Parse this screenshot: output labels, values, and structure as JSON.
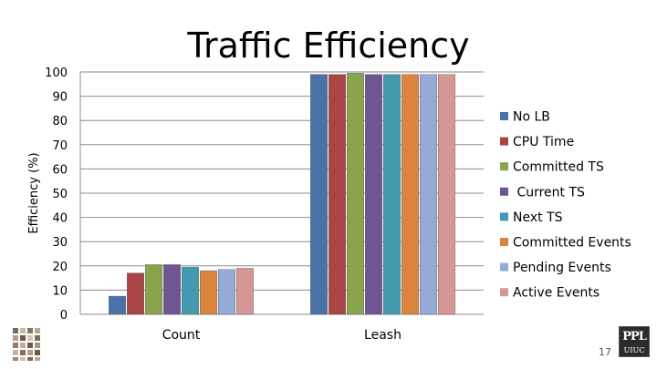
{
  "slide": {
    "number": "17"
  },
  "logos": {
    "right_text_1": "PPL",
    "right_text_2": "UIUC"
  },
  "chart_data": {
    "type": "bar",
    "title": "Traffic Efficiency",
    "ylabel": "Efficiency (%)",
    "xlabel": "",
    "ylim": [
      0,
      100
    ],
    "yticks": [
      0,
      10,
      20,
      30,
      40,
      50,
      60,
      70,
      80,
      90,
      100
    ],
    "grid": true,
    "legend_position": "right",
    "categories": [
      "Count",
      "Leash"
    ],
    "series": [
      {
        "name": "No LB",
        "color": "#4a72a8",
        "values": [
          7.5,
          99
        ]
      },
      {
        "name": "CPU Time",
        "color": "#aa4545",
        "values": [
          17,
          99
        ]
      },
      {
        "name": "Committed TS",
        "color": "#8aa34e",
        "values": [
          20.5,
          99.5
        ]
      },
      {
        "name": " Current TS",
        "color": "#6f5592",
        "values": [
          20.5,
          99
        ]
      },
      {
        "name": "Next TS",
        "color": "#4399ae",
        "values": [
          19.5,
          99
        ]
      },
      {
        "name": "Committed Events",
        "color": "#db843d",
        "values": [
          18,
          99
        ]
      },
      {
        "name": "Pending Events",
        "color": "#95aad4",
        "values": [
          18.5,
          99
        ]
      },
      {
        "name": "Active Events",
        "color": "#d59796",
        "values": [
          19,
          99
        ]
      }
    ]
  }
}
